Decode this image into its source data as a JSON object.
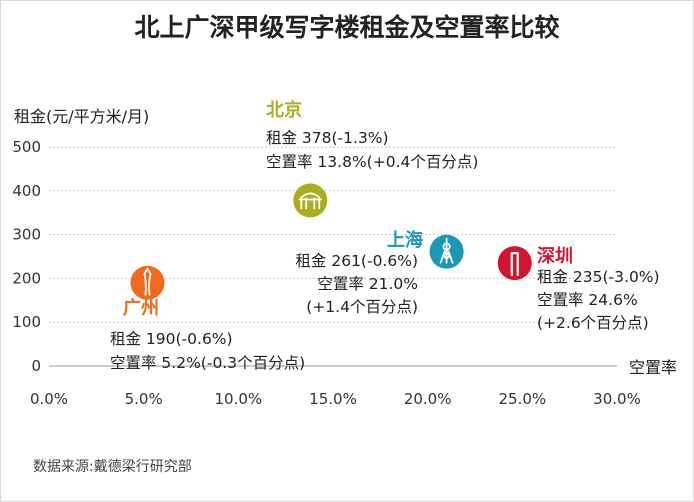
{
  "chart_data": {
    "type": "scatter",
    "title": "北上广深甲级写字楼租金及空置率比较",
    "ylabel": "租金(元/平方米/月)",
    "xlabel": "空置率",
    "xlim": [
      0,
      30
    ],
    "ylim": [
      0,
      500
    ],
    "x_ticks": [
      "0.0%",
      "5.0%",
      "10.0%",
      "15.0%",
      "20.0%",
      "25.0%",
      "30.0%"
    ],
    "y_ticks": [
      "0",
      "100",
      "200",
      "300",
      "400",
      "500"
    ],
    "grid": "horizontal-dotted",
    "points": [
      {
        "name": "北京",
        "x": 13.8,
        "y": 378,
        "color": "#a9ad1f",
        "icon": "forbidden-city-gate-icon",
        "lines": [
          "租金 378(-1.3%)",
          "空置率 13.8%(+0.4个百分点)"
        ]
      },
      {
        "name": "上海",
        "x": 21.0,
        "y": 261,
        "color": "#1b97b8",
        "icon": "oriental-pearl-tower-icon",
        "lines": [
          "租金 261(-0.6%)",
          "空置率 21.0%",
          "(+1.4个百分点)"
        ]
      },
      {
        "name": "广州",
        "x": 5.2,
        "y": 190,
        "color": "#ef6a1a",
        "icon": "canton-tower-icon",
        "lines": [
          "租金 190(-0.6%)",
          "空置率 5.2%(-0.3个百分点)"
        ]
      },
      {
        "name": "深圳",
        "x": 24.6,
        "y": 235,
        "color": "#d4142c",
        "icon": "shenzhen-tower-icon",
        "lines": [
          "租金 235(-3.0%)",
          "空置率 24.6%",
          "(+2.6个百分点)"
        ]
      }
    ]
  },
  "source": "数据来源:戴德梁行研究部"
}
